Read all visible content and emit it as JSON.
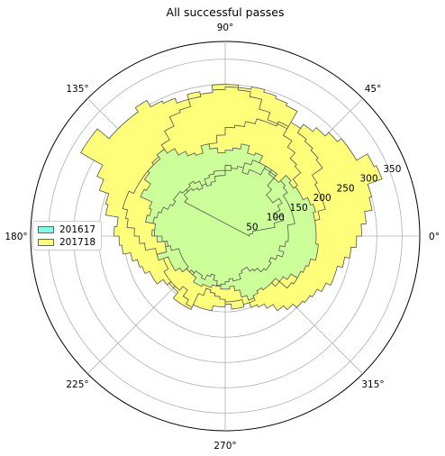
{
  "chart_data": {
    "type": "polar-histogram",
    "title": "All successful passes",
    "angle_ticks": [
      "0°",
      "45°",
      "90°",
      "135°",
      "180°",
      "225°",
      "270°",
      "315°"
    ],
    "radial_ticks": [
      50,
      100,
      150,
      200,
      250,
      300,
      350
    ],
    "rlim": [
      0,
      385
    ],
    "bin_width_deg": 5,
    "series": [
      {
        "name": "201617",
        "color": "#7ffde4",
        "values": [
          48,
          55,
          100,
          120,
          105,
          120,
          130,
          115,
          115,
          130,
          150,
          155,
          160,
          175,
          170,
          185,
          175,
          170,
          165,
          175,
          185,
          170,
          175,
          185,
          200,
          210,
          200,
          200,
          195,
          180,
          185,
          160,
          155,
          160,
          140,
          145,
          125,
          115,
          120,
          140,
          120,
          120,
          120,
          110,
          100,
          95,
          100,
          110,
          110,
          105,
          105,
          100,
          98,
          95,
          90,
          85,
          90,
          90,
          80,
          75,
          75,
          85,
          90,
          100,
          105,
          105,
          100,
          110,
          120,
          110,
          120,
          125,
          125,
          125,
          140,
          140,
          140,
          140,
          140,
          150,
          155,
          150,
          160,
          160,
          160,
          160,
          150,
          140,
          135,
          130,
          120,
          120,
          110,
          105,
          110,
          105,
          110,
          115,
          120,
          125,
          125,
          120,
          125,
          135,
          140,
          145,
          140,
          140,
          135,
          120,
          110,
          95,
          95,
          95,
          95,
          95,
          100,
          100,
          90,
          90,
          95,
          85,
          80,
          90,
          100,
          105,
          105,
          100,
          110,
          125,
          135,
          130,
          125,
          130,
          130,
          130,
          140,
          150,
          165,
          170,
          175,
          185,
          185,
          180,
          180,
          180,
          180,
          185,
          180,
          170,
          170,
          165,
          170,
          150,
          155,
          160,
          140,
          140,
          130,
          140,
          135,
          140,
          130,
          130,
          125,
          120,
          110,
          120,
          125,
          120,
          115,
          105
        ]
      },
      {
        "name": "201718",
        "color": "#fffe7a",
        "values": [
          48,
          55,
          100,
          120,
          150,
          160,
          165,
          175,
          195,
          200,
          215,
          230,
          250,
          245,
          260,
          280,
          290,
          300,
          300,
          285,
          290,
          280,
          290,
          295,
          310,
          300,
          300,
          300,
          330,
          330,
          280,
          265,
          245,
          240,
          215,
          220,
          210,
          205,
          190,
          180,
          175,
          165,
          165,
          150,
          140,
          145,
          160,
          160,
          160,
          150,
          150,
          150,
          140,
          140,
          130,
          130,
          130,
          140,
          140,
          110,
          100,
          110,
          120,
          140,
          160,
          165,
          155,
          160,
          170,
          160,
          160,
          165,
          175,
          175,
          190,
          205,
          205,
          205,
          210,
          235,
          240,
          245,
          250,
          260,
          285,
          290,
          295,
          300,
          295,
          295,
          290,
          285,
          280,
          265,
          260,
          240,
          220,
          205,
          205,
          200,
          200,
          200,
          200,
          210,
          210,
          200,
          195,
          180,
          170,
          160,
          140,
          130,
          130,
          130,
          140,
          140,
          145,
          140,
          130,
          145,
          155,
          125,
          110,
          115,
          120,
          125,
          135,
          145,
          145,
          140,
          150,
          155,
          165,
          180,
          190,
          200,
          205,
          210,
          220,
          230,
          230,
          240,
          250,
          260,
          270,
          280,
          295,
          300,
          330,
          325,
          300,
          300,
          290,
          280,
          270,
          260,
          245,
          240,
          240,
          230,
          220,
          215,
          200,
          185,
          175,
          165,
          155,
          150,
          140,
          135,
          120,
          100
        ]
      }
    ]
  }
}
